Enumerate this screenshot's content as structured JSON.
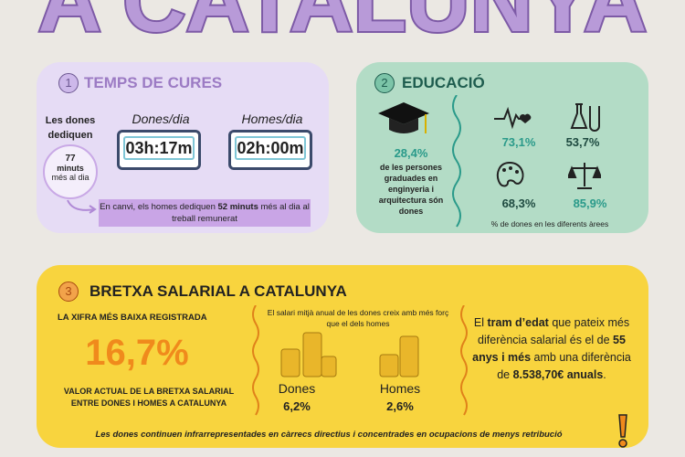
{
  "header": {
    "title": "A CATALUNYA"
  },
  "care": {
    "number": "1",
    "title": "TEMPS DE CURES",
    "women_spend": "Les dones dediquen",
    "extra_minutes": "77",
    "minutes_word": "minuts",
    "more_per_day": "més al dia",
    "women_label": "Dones/dia",
    "women_time": "03h:17m",
    "men_label": "Homes/dia",
    "men_time": "02h:00m",
    "note": {
      "before": "En canvi, els homes dediquen ",
      "bold": "52 minuts",
      "after": " més al dia al treball remunerat"
    }
  },
  "education": {
    "number": "2",
    "title": "EDUCACIÓ",
    "engineering_share": "28,4%",
    "engineering_text": "de les persones graduades en enginyeria i arquitectura són dones",
    "areas": [
      "73,1%",
      "53,7%",
      "68,3%",
      "85,9%"
    ],
    "areas_caption": "% de dones en les diferents àrees"
  },
  "salary": {
    "number": "3",
    "title": "BRETXA SALARIAL A CATALUNYA",
    "lowest_label": "LA XIFRA MÉS BAIXA REGISTRADA",
    "gap": "16,7%",
    "gap_caption": "VALOR ACTUAL DE LA BRETXA SALARIAL ENTRE DONES I HOMES A CATALUNYA",
    "growth_caption": "El salari mitjà anual de les dones creix amb més forç que el dels homes",
    "women_label": "Dones",
    "women_growth": "6,2%",
    "men_label": "Homes",
    "men_growth": "2,6%",
    "age_text": {
      "p1": "El ",
      "b1": "tram d’edat",
      "p2": " que pateix més diferència salarial és el de ",
      "b2": "55 anys i més",
      "p3": " amb una diferència de ",
      "b3": "8.538,70€ anuals",
      "p4": "."
    }
  },
  "footer": {
    "text": "Les dones continuen infrarrepresentades en càrrecs directius i concentrades en ocupacions de menys retribució"
  }
}
